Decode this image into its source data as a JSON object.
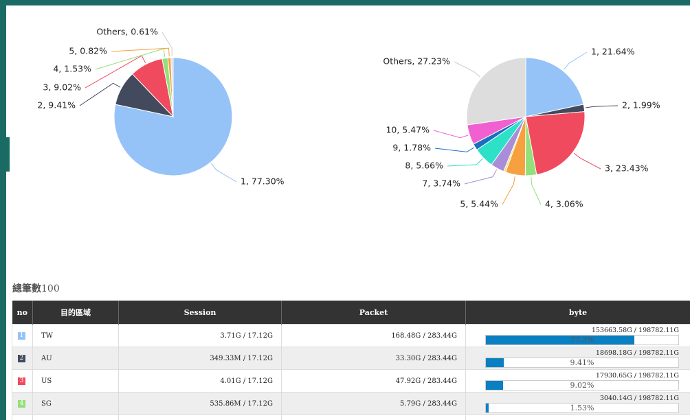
{
  "charts": [
    {
      "type": "pie",
      "slices": [
        {
          "label": "1, 77.30%",
          "value": 77.3,
          "color": "#95c3f7"
        },
        {
          "label": "2, 9.41%",
          "value": 9.41,
          "color": "#434a5e"
        },
        {
          "label": "3, 9.02%",
          "value": 9.02,
          "color": "#f04a5e"
        },
        {
          "label": "4, 1.53%",
          "value": 1.53,
          "color": "#93e07a"
        },
        {
          "label": "5, 0.82%",
          "value": 0.82,
          "color": "#f7a040"
        },
        {
          "label": "Others, 0.61%",
          "value": 0.61,
          "color": "#dddddd"
        }
      ]
    },
    {
      "type": "pie",
      "slices": [
        {
          "label": "1, 21.64%",
          "value": 21.64,
          "color": "#95c3f7"
        },
        {
          "label": "2, 1.99%",
          "value": 1.99,
          "color": "#434a5e"
        },
        {
          "label": "3, 23.43%",
          "value": 23.43,
          "color": "#f04a5e"
        },
        {
          "label": "4, 3.06%",
          "value": 3.06,
          "color": "#93e07a"
        },
        {
          "label": "5, 5.44%",
          "value": 5.44,
          "color": "#f7a040"
        },
        {
          "label": null,
          "value": 0.56,
          "color": "#f3e26a"
        },
        {
          "label": "7, 3.74%",
          "value": 3.74,
          "color": "#a98ddb"
        },
        {
          "label": "8, 5.66%",
          "value": 5.66,
          "color": "#2de0c8"
        },
        {
          "label": "9, 1.78%",
          "value": 1.78,
          "color": "#1a6fc0"
        },
        {
          "label": "10, 5.47%",
          "value": 5.47,
          "color": "#f060d0"
        },
        {
          "label": "Others, 27.23%",
          "value": 27.23,
          "color": "#dddddd"
        }
      ]
    }
  ],
  "table": {
    "caption": "總筆數",
    "count": "100",
    "headers": [
      "no",
      "目的區域",
      "Session",
      "Packet",
      "byte"
    ],
    "rows": [
      {
        "no": "1",
        "color": "#95c3f7",
        "region": "TW",
        "session": "3.71G / 17.12G",
        "packet": "168.48G / 283.44G",
        "byte": "153663.58G / 198782.11G",
        "pct": 77.3,
        "pct_label": "77.3%"
      },
      {
        "no": "2",
        "color": "#434a5e",
        "region": "AU",
        "session": "349.33M / 17.12G",
        "packet": "33.30G / 283.44G",
        "byte": "18698.18G / 198782.11G",
        "pct": 9.41,
        "pct_label": "9.41%"
      },
      {
        "no": "3",
        "color": "#f04a5e",
        "region": "US",
        "session": "4.01G / 17.12G",
        "packet": "47.92G / 283.44G",
        "byte": "17930.65G / 198782.11G",
        "pct": 9.02,
        "pct_label": "9.02%"
      },
      {
        "no": "4",
        "color": "#93e07a",
        "region": "SG",
        "session": "535.86M / 17.12G",
        "packet": "5.79G / 283.44G",
        "byte": "3040.14G / 198782.11G",
        "pct": 1.53,
        "pct_label": "1.53%"
      }
    ]
  }
}
